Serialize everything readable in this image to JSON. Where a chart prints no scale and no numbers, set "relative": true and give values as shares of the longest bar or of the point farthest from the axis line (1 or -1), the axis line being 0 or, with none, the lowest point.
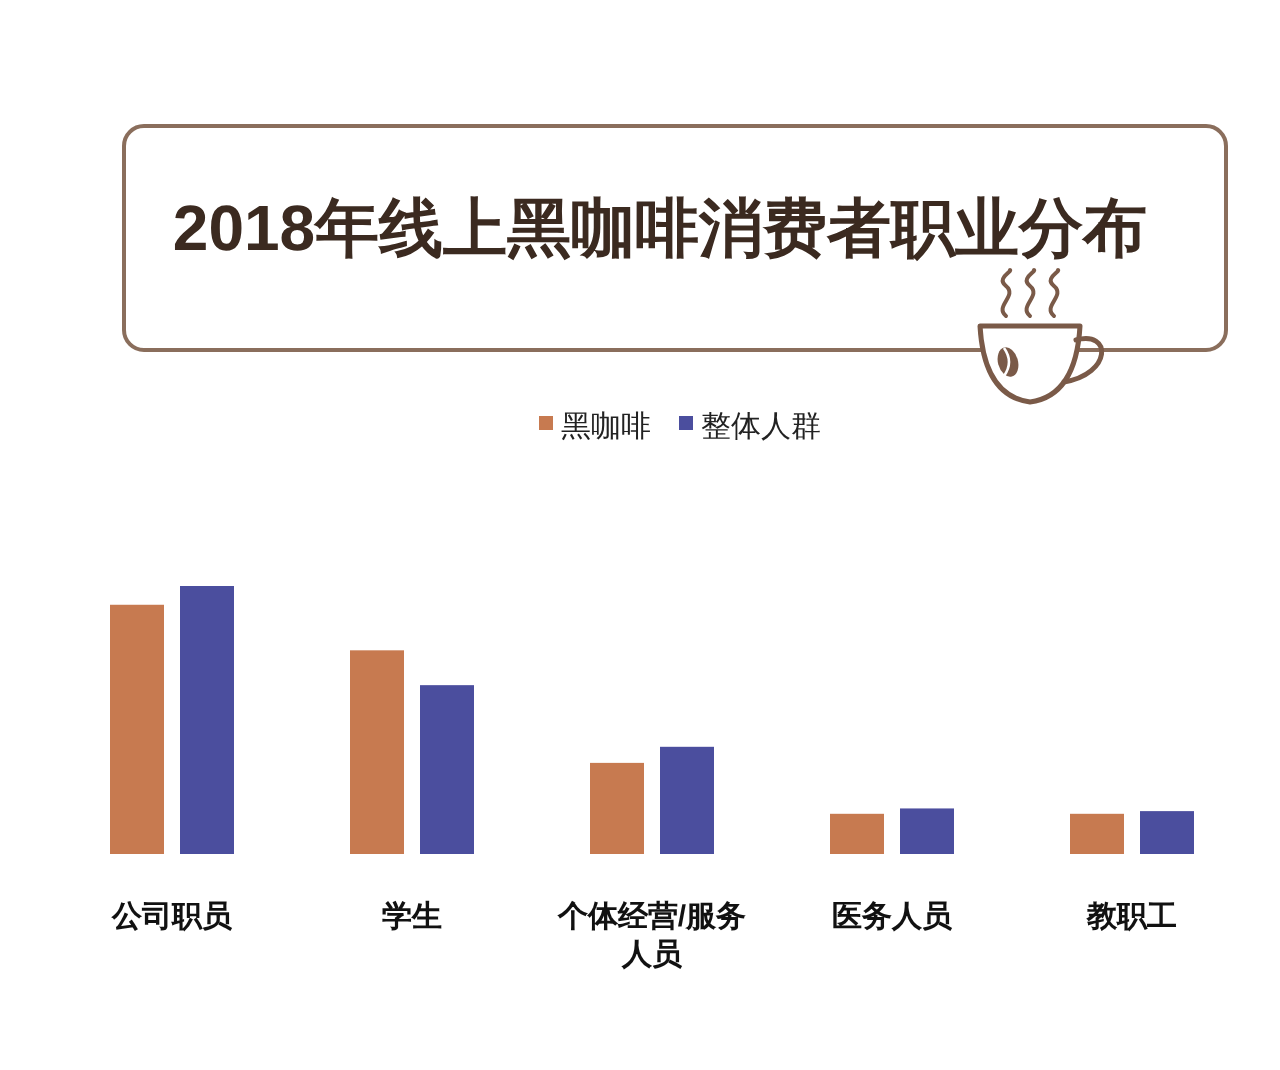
{
  "chart_data": {
    "type": "bar",
    "title": "2018年线上黑咖啡消费者职业分布",
    "categories": [
      "公司职员",
      "学生",
      "个体经营/服务人员",
      "医务人员",
      "教职工"
    ],
    "series": [
      {
        "name": "黑咖啡",
        "color": "#c77a50",
        "values": [
          0.93,
          0.76,
          0.34,
          0.15,
          0.15
        ]
      },
      {
        "name": "整体人群",
        "color": "#4b4e9e",
        "values": [
          1,
          0.63,
          0.4,
          0.17,
          0.16
        ]
      }
    ],
    "relative": true,
    "legend": "top"
  }
}
